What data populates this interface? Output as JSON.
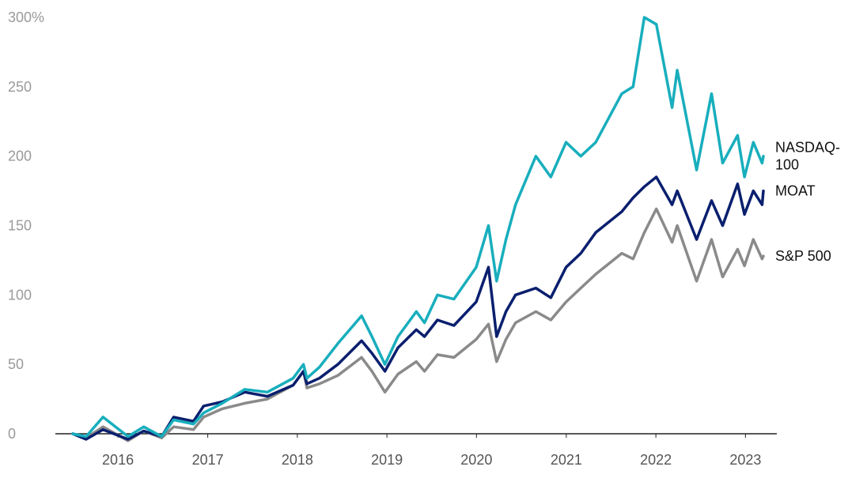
{
  "chart_data": {
    "type": "line",
    "title": "",
    "xlabel": "",
    "ylabel": "",
    "ylim": [
      0,
      300
    ],
    "xlim": [
      "2015-07-01",
      "2023-03-15"
    ],
    "y_ticks": [
      {
        "value": 0,
        "label": "0"
      },
      {
        "value": 50,
        "label": "50"
      },
      {
        "value": 100,
        "label": "100"
      },
      {
        "value": 150,
        "label": "150"
      },
      {
        "value": 200,
        "label": "200"
      },
      {
        "value": 250,
        "label": "250"
      },
      {
        "value": 300,
        "label": "300%"
      }
    ],
    "x_ticks": [
      {
        "value": "2016-01-01",
        "label": "2016"
      },
      {
        "value": "2017-01-01",
        "label": "2017"
      },
      {
        "value": "2018-01-01",
        "label": "2018"
      },
      {
        "value": "2019-01-01",
        "label": "2019"
      },
      {
        "value": "2020-01-01",
        "label": "2020"
      },
      {
        "value": "2021-01-01",
        "label": "2021"
      },
      {
        "value": "2022-01-01",
        "label": "2022"
      },
      {
        "value": "2023-01-01",
        "label": "2023"
      }
    ],
    "grid": false,
    "legend": "direct labels at line ends",
    "series": [
      {
        "name": "S&P 500",
        "label_lines": [
          "S&P 500"
        ],
        "color": "#8a8a8a",
        "points": [
          [
            "2015-07-01",
            0
          ],
          [
            "2015-08-24",
            -3
          ],
          [
            "2015-11-01",
            5
          ],
          [
            "2016-02-11",
            -5
          ],
          [
            "2016-04-15",
            2
          ],
          [
            "2016-06-27",
            -3
          ],
          [
            "2016-08-15",
            5
          ],
          [
            "2016-11-04",
            3
          ],
          [
            "2016-12-15",
            12
          ],
          [
            "2017-03-01",
            18
          ],
          [
            "2017-06-01",
            22
          ],
          [
            "2017-09-01",
            25
          ],
          [
            "2017-12-15",
            35
          ],
          [
            "2018-01-26",
            45
          ],
          [
            "2018-02-09",
            33
          ],
          [
            "2018-04-01",
            36
          ],
          [
            "2018-06-15",
            42
          ],
          [
            "2018-09-20",
            55
          ],
          [
            "2018-11-01",
            45
          ],
          [
            "2018-12-24",
            30
          ],
          [
            "2019-02-15",
            43
          ],
          [
            "2019-05-01",
            52
          ],
          [
            "2019-06-03",
            45
          ],
          [
            "2019-07-26",
            57
          ],
          [
            "2019-10-01",
            55
          ],
          [
            "2019-12-31",
            68
          ],
          [
            "2020-02-19",
            79
          ],
          [
            "2020-03-23",
            52
          ],
          [
            "2020-04-30",
            68
          ],
          [
            "2020-06-08",
            80
          ],
          [
            "2020-08-30",
            88
          ],
          [
            "2020-10-30",
            82
          ],
          [
            "2020-12-31",
            95
          ],
          [
            "2021-03-01",
            105
          ],
          [
            "2021-05-01",
            115
          ],
          [
            "2021-08-15",
            130
          ],
          [
            "2021-09-30",
            126
          ],
          [
            "2021-11-15",
            145
          ],
          [
            "2022-01-03",
            162
          ],
          [
            "2022-03-08",
            138
          ],
          [
            "2022-03-29",
            150
          ],
          [
            "2022-06-16",
            110
          ],
          [
            "2022-08-16",
            140
          ],
          [
            "2022-09-30",
            113
          ],
          [
            "2022-11-30",
            133
          ],
          [
            "2022-12-28",
            121
          ],
          [
            "2023-02-02",
            140
          ],
          [
            "2023-03-10",
            126
          ],
          [
            "2023-03-15",
            128
          ]
        ]
      },
      {
        "name": "MOAT",
        "label_lines": [
          "MOAT"
        ],
        "color": "#0a1f6e",
        "points": [
          [
            "2015-07-01",
            0
          ],
          [
            "2015-08-24",
            -4
          ],
          [
            "2015-11-01",
            3
          ],
          [
            "2016-02-11",
            -4
          ],
          [
            "2016-04-15",
            2
          ],
          [
            "2016-06-27",
            -2
          ],
          [
            "2016-08-15",
            12
          ],
          [
            "2016-11-04",
            9
          ],
          [
            "2016-12-15",
            20
          ],
          [
            "2017-03-01",
            23
          ],
          [
            "2017-06-01",
            30
          ],
          [
            "2017-09-01",
            27
          ],
          [
            "2017-12-15",
            35
          ],
          [
            "2018-01-26",
            45
          ],
          [
            "2018-02-09",
            36
          ],
          [
            "2018-04-01",
            40
          ],
          [
            "2018-06-15",
            50
          ],
          [
            "2018-09-20",
            67
          ],
          [
            "2018-11-01",
            58
          ],
          [
            "2018-12-24",
            45
          ],
          [
            "2019-02-15",
            62
          ],
          [
            "2019-05-01",
            75
          ],
          [
            "2019-06-03",
            70
          ],
          [
            "2019-07-26",
            82
          ],
          [
            "2019-10-01",
            78
          ],
          [
            "2019-12-31",
            95
          ],
          [
            "2020-02-19",
            120
          ],
          [
            "2020-03-23",
            70
          ],
          [
            "2020-04-30",
            88
          ],
          [
            "2020-06-08",
            100
          ],
          [
            "2020-08-30",
            105
          ],
          [
            "2020-10-30",
            98
          ],
          [
            "2020-12-31",
            120
          ],
          [
            "2021-03-01",
            130
          ],
          [
            "2021-05-01",
            145
          ],
          [
            "2021-08-15",
            160
          ],
          [
            "2021-09-30",
            170
          ],
          [
            "2021-11-15",
            178
          ],
          [
            "2022-01-03",
            185
          ],
          [
            "2022-03-08",
            165
          ],
          [
            "2022-03-29",
            175
          ],
          [
            "2022-06-16",
            140
          ],
          [
            "2022-08-16",
            168
          ],
          [
            "2022-09-30",
            150
          ],
          [
            "2022-11-30",
            180
          ],
          [
            "2022-12-28",
            158
          ],
          [
            "2023-02-02",
            175
          ],
          [
            "2023-03-10",
            165
          ],
          [
            "2023-03-15",
            175
          ]
        ]
      },
      {
        "name": "NASDAQ-100",
        "label_lines": [
          "NASDAQ-",
          "100"
        ],
        "color": "#18aebd",
        "points": [
          [
            "2015-07-01",
            0
          ],
          [
            "2015-08-24",
            -2
          ],
          [
            "2015-11-01",
            12
          ],
          [
            "2016-02-11",
            -2
          ],
          [
            "2016-04-15",
            5
          ],
          [
            "2016-06-27",
            -2
          ],
          [
            "2016-08-15",
            10
          ],
          [
            "2016-11-04",
            7
          ],
          [
            "2016-12-15",
            15
          ],
          [
            "2017-03-01",
            22
          ],
          [
            "2017-06-01",
            32
          ],
          [
            "2017-09-01",
            30
          ],
          [
            "2017-12-15",
            40
          ],
          [
            "2018-01-26",
            50
          ],
          [
            "2018-02-09",
            40
          ],
          [
            "2018-04-01",
            48
          ],
          [
            "2018-06-15",
            65
          ],
          [
            "2018-09-20",
            85
          ],
          [
            "2018-11-01",
            70
          ],
          [
            "2018-12-24",
            50
          ],
          [
            "2019-02-15",
            70
          ],
          [
            "2019-05-01",
            88
          ],
          [
            "2019-06-03",
            80
          ],
          [
            "2019-07-26",
            100
          ],
          [
            "2019-10-01",
            97
          ],
          [
            "2019-12-31",
            120
          ],
          [
            "2020-02-19",
            150
          ],
          [
            "2020-03-23",
            110
          ],
          [
            "2020-04-30",
            140
          ],
          [
            "2020-06-08",
            165
          ],
          [
            "2020-08-30",
            200
          ],
          [
            "2020-10-30",
            185
          ],
          [
            "2020-12-31",
            210
          ],
          [
            "2021-03-01",
            200
          ],
          [
            "2021-05-01",
            210
          ],
          [
            "2021-08-15",
            245
          ],
          [
            "2021-09-30",
            250
          ],
          [
            "2021-11-15",
            300
          ],
          [
            "2022-01-03",
            295
          ],
          [
            "2022-03-08",
            235
          ],
          [
            "2022-03-29",
            262
          ],
          [
            "2022-06-16",
            190
          ],
          [
            "2022-08-16",
            245
          ],
          [
            "2022-09-30",
            195
          ],
          [
            "2022-11-30",
            215
          ],
          [
            "2022-12-28",
            185
          ],
          [
            "2023-02-02",
            210
          ],
          [
            "2023-03-10",
            195
          ],
          [
            "2023-03-15",
            200
          ]
        ]
      }
    ]
  }
}
